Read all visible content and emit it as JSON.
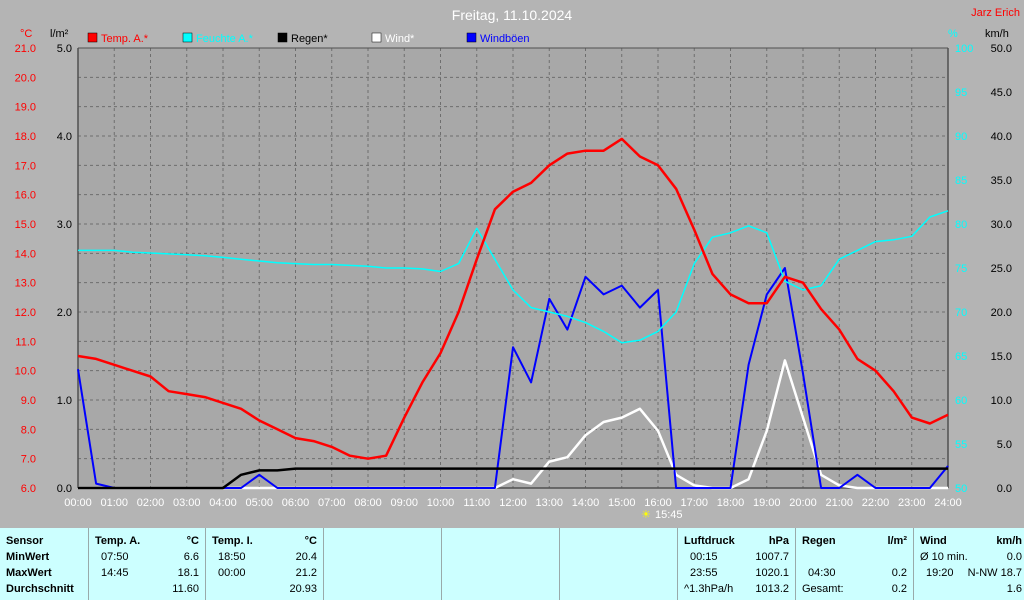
{
  "header": {
    "title": "Freitag, 11.10.2024",
    "author": "Jarz Erich",
    "unit_temp": "°C",
    "unit_rain": "l/m²",
    "unit_hum": "%",
    "unit_wind": "km/h",
    "sun_marker": "15:45"
  },
  "legend": [
    {
      "label": "Temp. A.*",
      "color": "#ff0000"
    },
    {
      "label": "Feuchte A.*",
      "color": "#00ffff"
    },
    {
      "label": "Regen*",
      "color": "#000000"
    },
    {
      "label": "Wind*",
      "color": "#ffffff"
    },
    {
      "label": "Windböen",
      "color": "#0000ff"
    }
  ],
  "chart_data": {
    "type": "line",
    "title": "Freitag, 11.10.2024",
    "x_hours": [
      0,
      0.5,
      1,
      1.5,
      2,
      2.5,
      3,
      3.5,
      4,
      4.5,
      5,
      5.5,
      6,
      6.5,
      7,
      7.5,
      8,
      8.5,
      9,
      9.5,
      10,
      10.5,
      11,
      11.5,
      12,
      12.5,
      13,
      13.5,
      14,
      14.5,
      15,
      15.5,
      16,
      16.5,
      17,
      17.5,
      18,
      18.5,
      19,
      19.5,
      20,
      20.5,
      21,
      21.5,
      22,
      22.5,
      23,
      23.5,
      24
    ],
    "xticks": [
      "00:00",
      "01:00",
      "02:00",
      "03:00",
      "04:00",
      "05:00",
      "06:00",
      "07:00",
      "08:00",
      "09:00",
      "10:00",
      "11:00",
      "12:00",
      "13:00",
      "14:00",
      "15:00",
      "16:00",
      "17:00",
      "18:00",
      "19:00",
      "20:00",
      "21:00",
      "22:00",
      "23:00",
      "24:00"
    ],
    "temp_axis": {
      "label": "°C",
      "ylim": [
        6.0,
        21.0
      ],
      "ticks": [
        "21.0",
        "20.0",
        "19.0",
        "18.0",
        "17.0",
        "16.0",
        "15.0",
        "14.0",
        "13.0",
        "12.0",
        "11.0",
        "10.0",
        "9.0",
        "8.0",
        "7.0",
        "6.0"
      ]
    },
    "rain_axis": {
      "label": "l/m²",
      "ylim": [
        0.0,
        5.0
      ],
      "ticks": [
        "5.0",
        "4.0",
        "3.0",
        "2.0",
        "1.0",
        "0.0"
      ]
    },
    "hum_axis": {
      "label": "%",
      "ylim": [
        50,
        100
      ],
      "ticks": [
        "100",
        "95",
        "90",
        "85",
        "80",
        "75",
        "70",
        "65",
        "60",
        "55",
        "50"
      ]
    },
    "wind_axis": {
      "label": "km/h",
      "ylim": [
        0.0,
        50.0
      ],
      "ticks": [
        "50.0",
        "45.0",
        "40.0",
        "35.0",
        "30.0",
        "25.0",
        "20.0",
        "15.0",
        "10.0",
        "5.0",
        "0.0"
      ]
    },
    "series": [
      {
        "name": "Temp. A.*",
        "color": "#ff0000",
        "values": [
          10.5,
          10.4,
          10.2,
          10.0,
          9.8,
          9.3,
          9.2,
          9.1,
          8.9,
          8.7,
          8.3,
          8.0,
          7.7,
          7.6,
          7.4,
          7.1,
          7.0,
          7.1,
          8.4,
          9.6,
          10.6,
          12.0,
          13.8,
          15.5,
          16.1,
          16.4,
          17.0,
          17.4,
          17.5,
          17.5,
          17.9,
          17.3,
          17.0,
          16.2,
          14.8,
          13.3,
          12.6,
          12.3,
          12.3,
          13.2,
          13.0,
          12.1,
          11.4,
          10.4,
          10.0,
          9.3,
          8.4,
          8.2,
          8.5
        ]
      },
      {
        "name": "Feuchte A.*",
        "color": "#00ffff",
        "values": [
          77,
          77,
          77,
          76.8,
          76.7,
          76.6,
          76.5,
          76.4,
          76.2,
          76,
          75.8,
          75.6,
          75.5,
          75.4,
          75.4,
          75.3,
          75.2,
          75,
          75,
          74.9,
          74.6,
          75.5,
          79.5,
          76,
          72.5,
          70.5,
          70,
          69.5,
          68.8,
          67.8,
          66.5,
          66.8,
          67.8,
          70,
          75.5,
          78.5,
          79,
          79.8,
          79,
          73.5,
          72.5,
          73,
          76,
          77,
          78,
          78.2,
          78.6,
          80.8,
          81.5
        ]
      },
      {
        "name": "Regen*",
        "color": "#000000",
        "values": [
          0,
          0,
          0,
          0,
          0,
          0,
          0,
          0,
          0,
          0.15,
          0.2,
          0.2,
          0.22,
          0.22,
          0.22,
          0.22,
          0.22,
          0.22,
          0.22,
          0.22,
          0.22,
          0.22,
          0.22,
          0.22,
          0.22,
          0.22,
          0.22,
          0.22,
          0.22,
          0.22,
          0.22,
          0.22,
          0.22,
          0.22,
          0.22,
          0.22,
          0.22,
          0.22,
          0.22,
          0.22,
          0.22,
          0.22,
          0.22,
          0.22,
          0.22,
          0.22,
          0.22,
          0.22,
          0.22
        ]
      },
      {
        "name": "Wind*",
        "color": "#ffffff",
        "values": [
          0,
          0,
          0,
          0,
          0,
          0,
          0,
          0,
          0,
          0,
          0,
          0,
          0,
          0,
          0,
          0,
          0,
          0,
          0,
          0,
          0,
          0,
          0,
          0,
          1,
          0.5,
          3,
          3.5,
          6,
          7.5,
          8,
          9,
          6.5,
          1.5,
          0.3,
          0,
          0,
          1,
          6.5,
          14.5,
          8,
          1.5,
          0.3,
          0,
          0,
          0,
          0,
          0,
          0
        ]
      },
      {
        "name": "Windböen",
        "color": "#0000ff",
        "values": [
          13.5,
          0.5,
          0,
          0,
          0,
          0,
          0,
          0,
          0,
          0,
          1.5,
          0,
          0,
          0,
          0,
          0,
          0,
          0,
          0,
          0,
          0,
          0,
          0,
          0,
          16,
          12,
          21.5,
          18,
          24,
          22,
          23,
          20.5,
          22.5,
          0,
          0,
          0,
          0,
          14,
          22,
          25,
          13,
          0,
          0,
          1.5,
          0,
          0,
          0,
          0,
          2.5
        ]
      }
    ]
  },
  "table": {
    "row_labels": [
      "Sensor",
      "MinWert",
      "MaxWert",
      "Durchschnitt"
    ],
    "temp_a": {
      "header": "Temp. A.",
      "unit": "°C",
      "min_time": "07:50",
      "min": "6.6",
      "max_time": "14:45",
      "max": "18.1",
      "avg": "11.60"
    },
    "temp_i": {
      "header": "Temp. I.",
      "unit": "°C",
      "min_time": "18:50",
      "min": "20.4",
      "max_time": "00:00",
      "max": "21.2",
      "avg": "20.93"
    },
    "luftdruck": {
      "header": "Luftdruck",
      "unit": "hPa",
      "min_time": "00:15",
      "min": "1007.7",
      "max_time": "23:55",
      "max": "1020.1",
      "trend": "^1.3hPa/h",
      "avg": "1013.2"
    },
    "regen": {
      "header": "Regen",
      "unit": "l/m²",
      "row1_time": "04:30",
      "row1": "0.2",
      "row2_label": "Gesamt:",
      "row2": "0.2"
    },
    "wind": {
      "header": "Wind",
      "unit": "km/h",
      "min_label": "Ø 10 min.",
      "min": "0.0",
      "max_time": "19:20",
      "max": "N-NW 18.7",
      "avg": "1.6"
    }
  }
}
